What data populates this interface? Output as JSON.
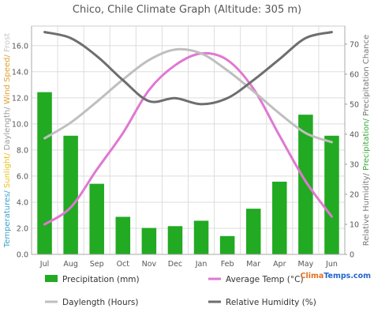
{
  "chart_data": {
    "type": "bar+line",
    "title": "Chico, Chile Climate Graph (Altitude: 305 m)",
    "categories": [
      "Jul",
      "Aug",
      "Sep",
      "Oct",
      "Nov",
      "Dec",
      "Jan",
      "Feb",
      "Mar",
      "Apr",
      "May",
      "Jun"
    ],
    "left_axis": {
      "title_parts": [
        {
          "text": "Temperatures/",
          "color": "#3aa3c8"
        },
        {
          "text": " Sunlight/",
          "color": "#e7c21a"
        },
        {
          "text": " Daylength/",
          "color": "#9a9a9a"
        },
        {
          "text": " Wind Speed/",
          "color": "#e0a030"
        },
        {
          "text": " Frost",
          "color": "#c8c8c8"
        }
      ],
      "ylim": [
        0,
        17.5
      ],
      "ticks": [
        "0.0",
        "2.0",
        "4.0",
        "6.0",
        "8.0",
        "10.0",
        "12.0",
        "14.0",
        "16.0"
      ]
    },
    "right_axis": {
      "title_parts": [
        {
          "text": "Relative Humidity/",
          "color": "#7a7a7a"
        },
        {
          "text": " Precipitation/",
          "color": "#3aa83a"
        },
        {
          "text": " Precipitation Chance",
          "color": "#777777"
        }
      ],
      "ylim": [
        0,
        76
      ],
      "ticks": [
        "0",
        "10",
        "20",
        "30",
        "40",
        "50",
        "60",
        "70"
      ]
    },
    "series": [
      {
        "name": "Precipitation (mm)",
        "type": "bar",
        "axis": "right",
        "color": "#22aa22",
        "values": [
          54,
          39.5,
          23.5,
          12.5,
          8.8,
          9.4,
          11.2,
          6.1,
          15.2,
          24.2,
          46.5,
          39.5
        ]
      },
      {
        "name": "Average Temp (°C)",
        "type": "line",
        "axis": "left",
        "color": "#e078d2",
        "values": [
          2.3,
          3.6,
          6.5,
          9.3,
          12.6,
          14.5,
          15.4,
          14.9,
          12.7,
          9.1,
          5.6,
          2.9
        ]
      },
      {
        "name": "Daylength (Hours)",
        "type": "line",
        "axis": "left",
        "color": "#bfbfbf",
        "values": [
          8.9,
          10.1,
          11.7,
          13.4,
          14.9,
          15.7,
          15.4,
          14.1,
          12.5,
          10.8,
          9.3,
          8.6
        ]
      },
      {
        "name": "Relative Humidity (%)",
        "type": "line",
        "axis": "right",
        "color": "#6e6e6e",
        "values": [
          74,
          72,
          66,
          58,
          51,
          52,
          50,
          52,
          58,
          65,
          72,
          74
        ]
      }
    ],
    "legend_placement": "bottom",
    "grid": true
  },
  "brand": {
    "text": "ClimaTemps.com"
  }
}
